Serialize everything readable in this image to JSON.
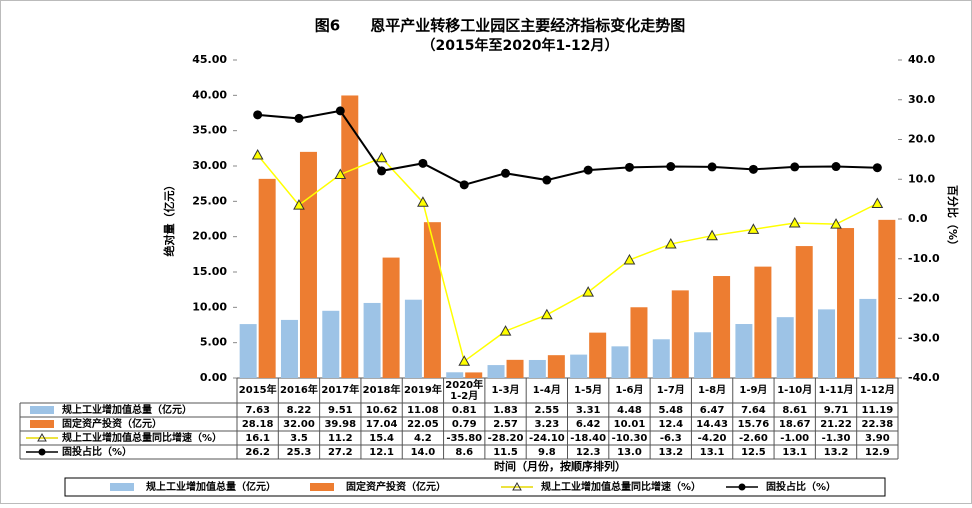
{
  "chart_data": {
    "type": "bar-line",
    "title": "图6　　恩平产业转移工业园区主要经济指标变化走势图",
    "subtitle": "（2015年至2020年1-12月）",
    "y_label": "绝对量（亿元）",
    "y2_label": "百分比（%）",
    "x_label": "时间（月份，按顺序排列）",
    "categories": [
      "2015年",
      "2016年",
      "2017年",
      "2018年",
      "2019年",
      "2020年\n1-2月",
      "1-3月",
      "1-4月",
      "1-5月",
      "1-6月",
      "1-7月",
      "1-8月",
      "1-9月",
      "1-10月",
      "1-11月",
      "1-12月"
    ],
    "ylim": [
      0,
      45
    ],
    "yticks": [
      {
        "value": 0,
        "label": "0.00"
      },
      {
        "value": 5,
        "label": "5.00"
      },
      {
        "value": 10,
        "label": "10.00"
      },
      {
        "value": 15,
        "label": "15.00"
      },
      {
        "value": 20,
        "label": "20.00"
      },
      {
        "value": 25,
        "label": "25.00"
      },
      {
        "value": 30,
        "label": "30.00"
      },
      {
        "value": 35,
        "label": "35.00"
      },
      {
        "value": 40,
        "label": "40.00"
      },
      {
        "value": 45,
        "label": "45.00"
      }
    ],
    "y2lim": [
      -40,
      40
    ],
    "y2ticks": [
      {
        "value": -40,
        "label": "-40.0"
      },
      {
        "value": -30,
        "label": "-30.0"
      },
      {
        "value": -20,
        "label": "-20.0"
      },
      {
        "value": -10,
        "label": "-10.0"
      },
      {
        "value": 0,
        "label": "0.0"
      },
      {
        "value": 10,
        "label": "10.0"
      },
      {
        "value": 20,
        "label": "20.0"
      },
      {
        "value": 30,
        "label": "30.0"
      },
      {
        "value": 40,
        "label": "40.0"
      }
    ],
    "series": [
      {
        "name": "规上工业增加值总量（亿元）",
        "type": "bar",
        "color": "#9dc3e6",
        "values": [
          7.63,
          8.22,
          9.51,
          10.62,
          11.08,
          0.81,
          1.83,
          2.55,
          3.31,
          4.48,
          5.48,
          6.47,
          7.64,
          8.61,
          9.71,
          11.19
        ],
        "value_labels": [
          "7.63",
          "8.22",
          "9.51",
          "10.62",
          "11.08",
          "0.81",
          "1.83",
          "2.55",
          "3.31",
          "4.48",
          "5.48",
          "6.47",
          "7.64",
          "8.61",
          "9.71",
          "11.19"
        ]
      },
      {
        "name": "固定资产投资（亿元）",
        "type": "bar",
        "color": "#ed7d31",
        "values": [
          28.18,
          32.0,
          39.98,
          17.04,
          22.05,
          0.79,
          2.57,
          3.23,
          6.42,
          10.01,
          12.4,
          14.43,
          15.76,
          18.67,
          21.22,
          22.38
        ],
        "value_labels": [
          "28.18",
          "32.00",
          "39.98",
          "17.04",
          "22.05",
          "0.79",
          "2.57",
          "3.23",
          "6.42",
          "10.01",
          "12.4",
          "14.43",
          "15.76",
          "18.67",
          "21.22",
          "22.38"
        ]
      },
      {
        "name": "规上工业增加值总量同比增速（%）",
        "type": "line",
        "axis": "y2",
        "color": "#ffff00",
        "marker": "triangle",
        "values": [
          16.1,
          3.5,
          11.2,
          15.4,
          4.2,
          -35.8,
          -28.2,
          -24.1,
          -18.4,
          -10.3,
          -6.3,
          -4.2,
          -2.6,
          -1.0,
          -1.3,
          3.9
        ],
        "value_labels": [
          "16.1",
          "3.5",
          "11.2",
          "15.4",
          "4.2",
          "-35.80",
          "-28.20",
          "-24.10",
          "-18.40",
          "-10.30",
          "-6.3",
          "-4.20",
          "-2.60",
          "-1.00",
          "-1.30",
          "3.90"
        ]
      },
      {
        "name": "固投占比（%）",
        "type": "line",
        "axis": "y2",
        "color": "#000000",
        "marker": "circle",
        "values": [
          26.2,
          25.3,
          27.2,
          12.1,
          14.0,
          8.6,
          11.5,
          9.8,
          12.3,
          13.0,
          13.2,
          13.1,
          12.5,
          13.1,
          13.2,
          12.9
        ],
        "value_labels": [
          "26.2",
          "25.3",
          "27.2",
          "12.1",
          "14.0",
          "8.6",
          "11.5",
          "9.8",
          "12.3",
          "13.0",
          "13.2",
          "13.1",
          "12.5",
          "13.1",
          "13.2",
          "12.9"
        ]
      }
    ]
  }
}
